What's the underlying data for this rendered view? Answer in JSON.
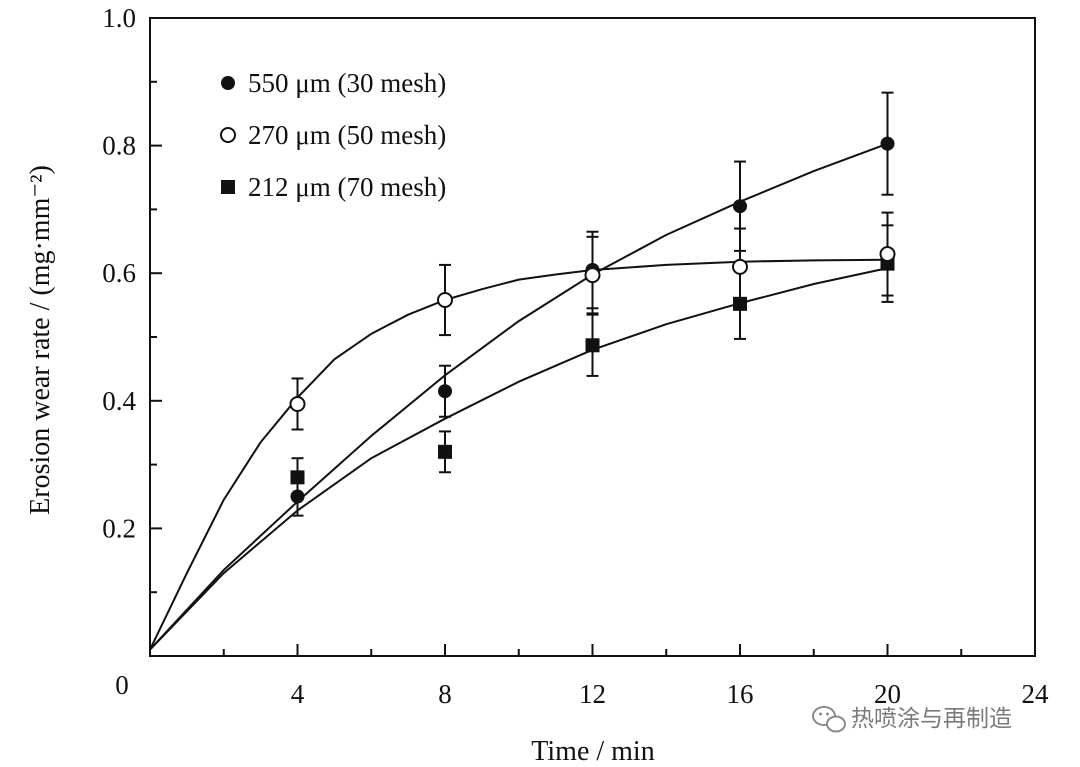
{
  "chart_data": {
    "type": "scatter",
    "title": "",
    "xlabel": "Time / min",
    "ylabel": "Erosion wear rate / (mg·mm⁻²)",
    "xlim": [
      0,
      24
    ],
    "ylim": [
      0,
      1.0
    ],
    "xticks": [
      0,
      4,
      8,
      12,
      16,
      20,
      24
    ],
    "xtick_labels": [
      "0",
      "4",
      "8",
      "12",
      "16",
      "20",
      "24"
    ],
    "yticks": [
      0.2,
      0.4,
      0.6,
      0.8,
      1.0
    ],
    "ytick_labels": [
      "0.2",
      "0.4",
      "0.6",
      "0.8",
      "1.0"
    ],
    "legend_position": "top-left",
    "grid": false,
    "series": [
      {
        "name": "550 μm (30 mesh)",
        "marker": "filled-circle",
        "x": [
          4,
          8,
          12,
          16,
          20
        ],
        "y": [
          0.25,
          0.415,
          0.605,
          0.705,
          0.803
        ],
        "err": [
          0.03,
          0.04,
          0.06,
          0.07,
          0.08
        ],
        "fit_curve": [
          [
            0,
            0.01
          ],
          [
            2,
            0.135
          ],
          [
            4,
            0.242
          ],
          [
            6,
            0.345
          ],
          [
            8,
            0.44
          ],
          [
            10,
            0.525
          ],
          [
            12,
            0.598
          ],
          [
            14,
            0.66
          ],
          [
            16,
            0.712
          ],
          [
            18,
            0.76
          ],
          [
            20,
            0.803
          ]
        ]
      },
      {
        "name": "270 μm (50 mesh)",
        "marker": "open-circle",
        "x": [
          4,
          8,
          12,
          16,
          20
        ],
        "y": [
          0.395,
          0.558,
          0.597,
          0.61,
          0.63
        ],
        "err": [
          0.04,
          0.055,
          0.06,
          0.06,
          0.065
        ],
        "fit_curve": [
          [
            0,
            0.01
          ],
          [
            1,
            0.13
          ],
          [
            2,
            0.245
          ],
          [
            3,
            0.335
          ],
          [
            4,
            0.405
          ],
          [
            5,
            0.465
          ],
          [
            6,
            0.505
          ],
          [
            7,
            0.535
          ],
          [
            8,
            0.558
          ],
          [
            9,
            0.575
          ],
          [
            10,
            0.59
          ],
          [
            11,
            0.598
          ],
          [
            12,
            0.605
          ],
          [
            14,
            0.613
          ],
          [
            16,
            0.618
          ],
          [
            18,
            0.62
          ],
          [
            20,
            0.621
          ]
        ]
      },
      {
        "name": "212 μm (70 mesh)",
        "marker": "filled-square",
        "x": [
          4,
          8,
          12,
          16,
          20
        ],
        "y": [
          0.28,
          0.32,
          0.487,
          0.552,
          0.615
        ],
        "err": [
          0.03,
          0.032,
          0.048,
          0.055,
          0.06
        ],
        "fit_curve": [
          [
            0,
            0.01
          ],
          [
            2,
            0.13
          ],
          [
            4,
            0.228
          ],
          [
            6,
            0.31
          ],
          [
            8,
            0.372
          ],
          [
            10,
            0.43
          ],
          [
            12,
            0.48
          ],
          [
            14,
            0.52
          ],
          [
            16,
            0.553
          ],
          [
            18,
            0.583
          ],
          [
            20,
            0.608
          ]
        ]
      }
    ]
  },
  "watermark": {
    "icon": "wechat-icon",
    "text": "热喷涂与再制造"
  }
}
